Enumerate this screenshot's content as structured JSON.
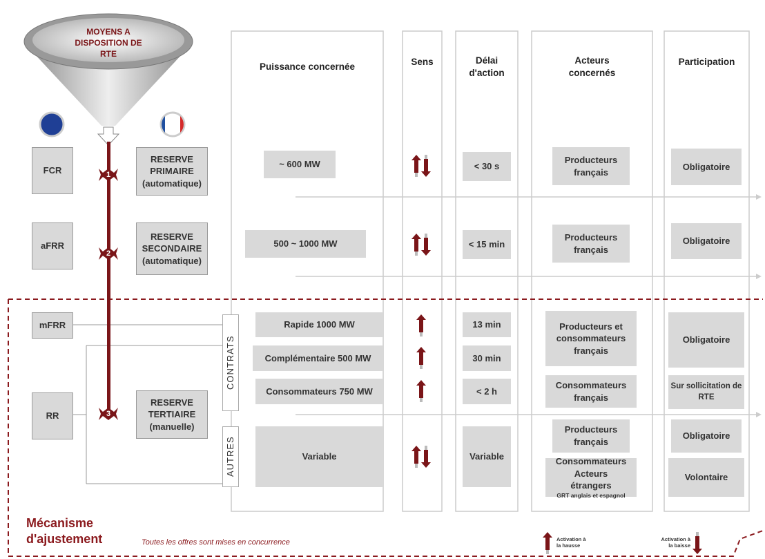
{
  "funnel": {
    "title": "MOYENS A DISPOSITION DE RTE"
  },
  "columns": [
    "Puissance concernée",
    "Sens",
    "Délai d'action",
    "Acteurs concernés",
    "Participation"
  ],
  "codes": [
    "FCR",
    "aFRR",
    "mFRR",
    "RR"
  ],
  "steps": [
    "1",
    "2",
    "3"
  ],
  "reserves": [
    "RESERVE PRIMAIRE (automatique)",
    "RESERVE SECONDAIRE (automatique)",
    "RESERVE TERTIAIRE (manuelle)"
  ],
  "groups": [
    "CONTRATS",
    "AUTRES"
  ],
  "puissance": [
    "~ 600 MW",
    "500 ~ 1000 MW",
    "Rapide 1000 MW",
    "Complémentaire 500 MW",
    "Consommateurs 750 MW",
    "Variable"
  ],
  "delai": [
    "< 30 s",
    "< 15 min",
    "13 min",
    "30 min",
    "< 2 h",
    "Variable"
  ],
  "acteurs": [
    "Producteurs français",
    "Producteurs français",
    "Producteurs et consommateurs français",
    "Consommateurs français",
    "Producteurs français",
    "Consommateurs Acteurs étrangers"
  ],
  "acteurs_note": "GRT anglais et espagnol",
  "participation": [
    "Obligatoire",
    "Obligatoire",
    "Obligatoire",
    "Sur sollicitation de RTE",
    "Obligatoire",
    "Volontaire"
  ],
  "footer": {
    "title": "Mécanisme d'ajustement",
    "note": "Toutes les offres sont mises en concurrence"
  },
  "legend": [
    "Activation à la hausse",
    "Activation à la baisse"
  ]
}
